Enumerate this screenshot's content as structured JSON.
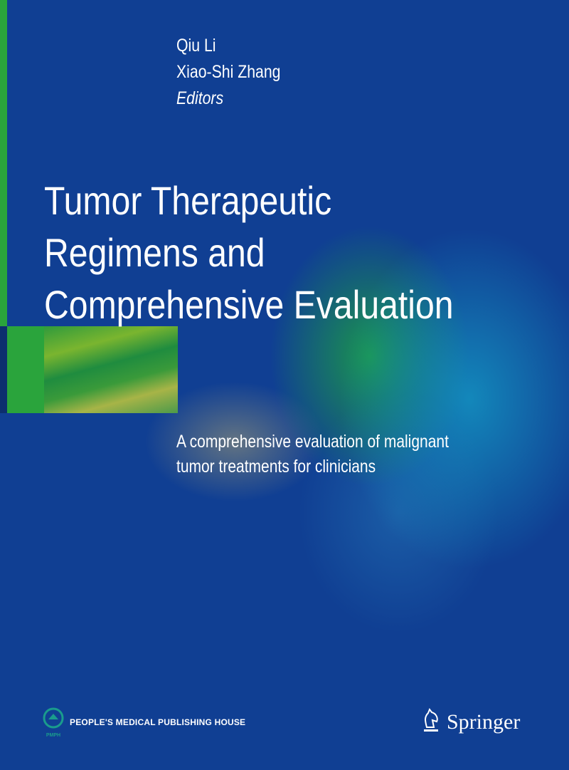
{
  "cover": {
    "authors": [
      "Qiu Li",
      "Xiao-Shi Zhang"
    ],
    "editors_label": "Editors",
    "title_lines": [
      "Tumor Therapeutic",
      "Regimens and",
      "Comprehensive Evaluation"
    ],
    "subtitle_lines": [
      "A comprehensive evaluation of malignant",
      "tumor treatments for clinicians"
    ],
    "publisher_left": {
      "name": "PEOPLE'S MEDICAL PUBLISHING HOUSE",
      "logo_text": "PMPH",
      "icon": "pmph-logo-icon"
    },
    "publisher_right": {
      "name": "Springer",
      "icon": "springer-horse-icon"
    },
    "colors": {
      "background": "#103f93",
      "accent_green": "#2aa43c",
      "logo_teal": "#1a9c8c"
    }
  }
}
